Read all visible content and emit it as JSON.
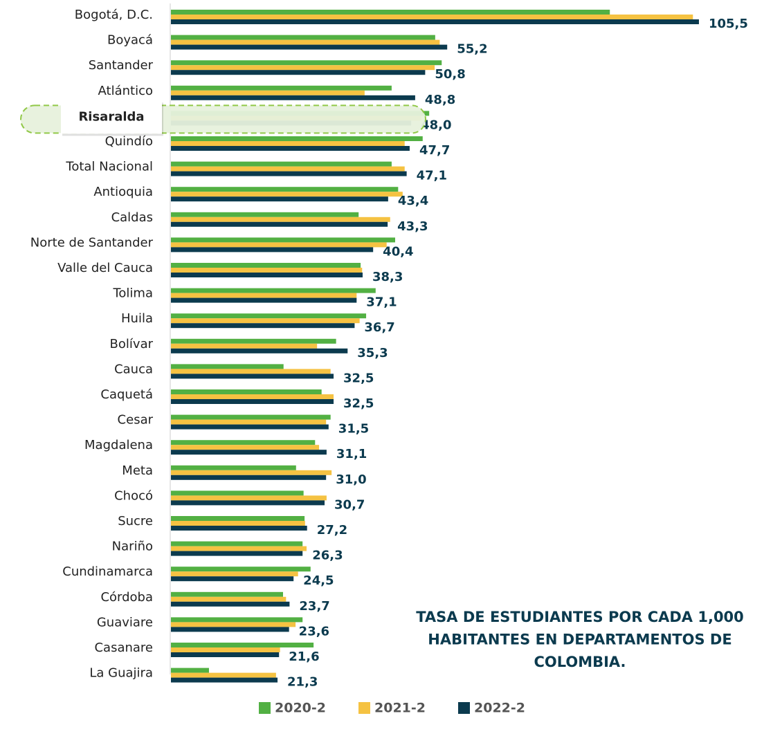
{
  "chart_data": {
    "type": "hbar",
    "title": [
      "TASA DE ESTUDIANTES POR CADA 1,000",
      "HABITANTES EN DEPARTAMENTOS DE",
      "COLOMBIA."
    ],
    "categories": [
      "Bogotá, D.C.",
      "Boyacá",
      "Santander",
      "Atlántico",
      "Risaralda",
      "Quindío",
      "Total Nacional",
      "Antioquia",
      "Caldas",
      "Norte de Santander",
      "Valle del Cauca",
      "Tolima",
      "Huila",
      "Bolívar",
      "Cauca",
      "Caquetá",
      "Cesar",
      "Magdalena",
      "Meta",
      "Chocó",
      "Sucre",
      "Nariño",
      "Cundinamarca",
      "Córdoba",
      "Guaviare",
      "Casanare",
      "La Guajira"
    ],
    "highlight": "Risaralda",
    "series": [
      {
        "name": "2020-2",
        "color": "#52b043",
        "values": [
          87.7,
          52.8,
          54.1,
          44.1,
          51.6,
          50.3,
          44.1,
          45.4,
          37.5,
          44.8,
          37.9,
          40.9,
          39.0,
          33.0,
          22.5,
          30.1,
          31.9,
          28.8,
          25.0,
          26.5,
          26.7,
          26.3,
          27.9,
          22.4,
          26.3,
          28.5,
          7.6
        ]
      },
      {
        "name": "2021-2",
        "color": "#f5c242",
        "values": [
          104.3,
          53.7,
          52.7,
          38.7,
          50.0,
          46.7,
          46.7,
          46.3,
          43.8,
          43.1,
          38.2,
          37.1,
          37.7,
          29.2,
          31.9,
          32.5,
          31.0,
          29.6,
          32.1,
          31.1,
          26.8,
          27.1,
          25.4,
          23.0,
          24.9,
          21.8,
          21.0
        ]
      },
      {
        "name": "2022-2",
        "color": "#0b3a4e",
        "values": [
          105.5,
          55.2,
          50.8,
          48.8,
          48.0,
          47.7,
          47.1,
          43.4,
          43.3,
          40.4,
          38.3,
          37.1,
          36.7,
          35.3,
          32.5,
          32.5,
          31.5,
          31.1,
          31.0,
          30.7,
          27.2,
          26.3,
          24.5,
          23.7,
          23.6,
          21.6,
          21.3
        ],
        "value_labels": [
          "105,5",
          "55,2",
          "50,8",
          "48,8",
          "48,0",
          "47,7",
          "47,1",
          "43,4",
          "43,3",
          "40,4",
          "38,3",
          "37,1",
          "36,7",
          "35,3",
          "32,5",
          "32,5",
          "31,5",
          "31,1",
          "31,0",
          "30,7",
          "27,2",
          "26,3",
          "24,5",
          "23,7",
          "23,6",
          "21,6",
          "21,3"
        ]
      }
    ],
    "xlim": [
      0,
      115
    ]
  }
}
